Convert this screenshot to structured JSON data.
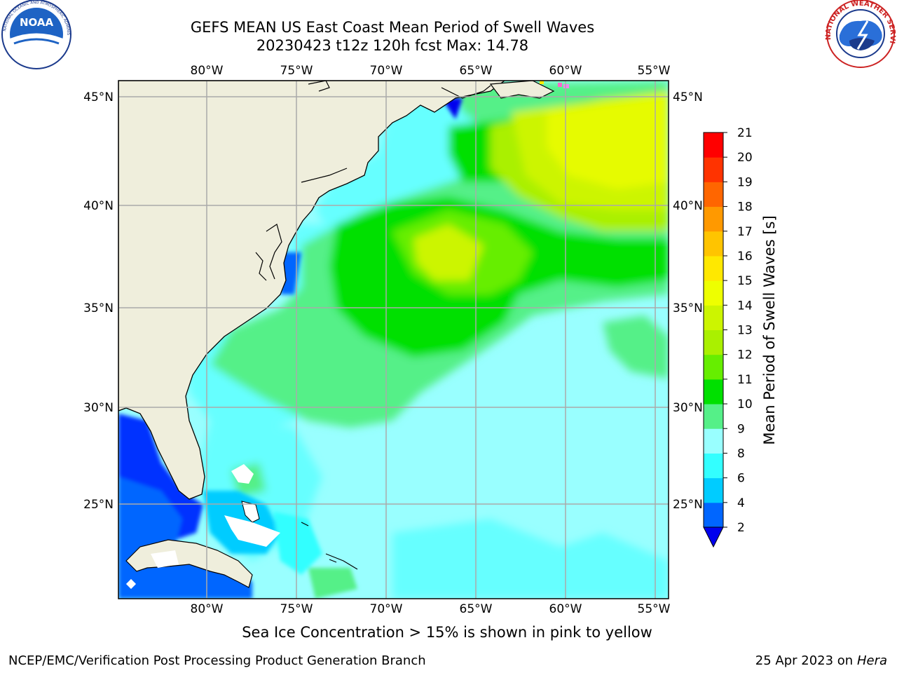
{
  "title": {
    "line1": "GEFS MEAN US East Coast Mean Period of Swell Waves",
    "line2": "20230423 t12z 120h fcst   Max: 14.78"
  },
  "logos": {
    "left": "NOAA",
    "left_ring": "NATIONAL OCEANIC AND ATMOSPHERIC ADMINISTRATION · U.S. DEPARTMENT OF COMMERCE",
    "right_ring": "NATIONAL WEATHER SERVICE"
  },
  "map": {
    "lon_ticks": [
      "80°W",
      "75°W",
      "70°W",
      "65°W",
      "60°W",
      "55°W"
    ],
    "lat_ticks": [
      "45°N",
      "40°N",
      "35°N",
      "30°N",
      "25°N"
    ],
    "colors": {
      "land": "#efeedc",
      "coast": "#000000",
      "grid": "#aaaaaa"
    }
  },
  "colorbar": {
    "label": "Mean Period of Swell Waves [s]",
    "ticks": [
      "2",
      "4",
      "6",
      "8",
      "9",
      "10",
      "11",
      "12",
      "13",
      "14",
      "15",
      "16",
      "17",
      "18",
      "19",
      "20",
      "21"
    ],
    "colors": [
      "#0066ff",
      "#00ccff",
      "#33ffff",
      "#99ffff",
      "#55f088",
      "#00e000",
      "#66ee00",
      "#aaf000",
      "#ccf500",
      "#eeff00",
      "#ffe800",
      "#ffc400",
      "#ff9900",
      "#ff6600",
      "#ff3300",
      "#ff0000"
    ],
    "under_color": "#0000ee"
  },
  "footer": {
    "note": "Sea Ice Concentration > 15% is shown in pink to yellow",
    "credit_left": "NCEP/EMC/Verification Post Processing Product Generation Branch",
    "date": "25 Apr 2023 on",
    "machine": "Hera"
  }
}
